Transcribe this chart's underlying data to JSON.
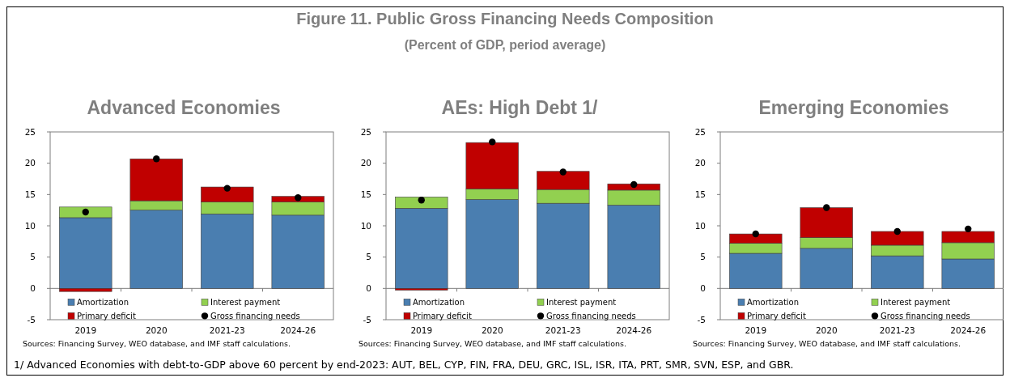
{
  "chart_data": [
    {
      "type": "other",
      "title": "Figure 11. Public Gross Financing Needs Composition",
      "subtitle": "(Percent of GDP, period average)",
      "annotations": [
        "1/ Advanced Economies with debt-to-GDP above 60 percent by end-2023: AUT, BEL, CYP, FIN, FRA, DEU, GRC, ISL, ISR, ITA, PRT, SMR, SVN, ESP, and GBR."
      ]
    },
    {
      "type": "bar",
      "stacked": true,
      "title": "Advanced Economies",
      "categories": [
        "2019",
        "2020",
        "2021-23",
        "2024-26"
      ],
      "ylim": [
        -5,
        25
      ],
      "yticks": [
        -5,
        0,
        5,
        10,
        15,
        20,
        25
      ],
      "legend": "bottom",
      "marker": "circle",
      "annotations": [
        "Sources: Financing Survey, WEO database, and IMF staff calculations."
      ],
      "series": [
        {
          "name": "Amortization",
          "color": "#4a7eb0",
          "values": [
            11.3,
            12.5,
            11.9,
            11.7
          ]
        },
        {
          "name": "Interest payment",
          "color": "#92d050",
          "values": [
            1.7,
            1.5,
            1.9,
            2.1
          ]
        },
        {
          "name": "Primary deficit",
          "color": "#c00000",
          "values": [
            -0.5,
            6.7,
            2.4,
            0.9
          ]
        },
        {
          "name": "Gross financing needs",
          "type": "scatter",
          "color": "#000000",
          "values": [
            12.2,
            20.7,
            16.0,
            14.5
          ]
        }
      ]
    },
    {
      "type": "bar",
      "stacked": true,
      "title": "AEs: High Debt 1/",
      "categories": [
        "2019",
        "2020",
        "2021-23",
        "2024-26"
      ],
      "ylim": [
        -5,
        25
      ],
      "yticks": [
        -5,
        0,
        5,
        10,
        15,
        20,
        25
      ],
      "legend": "bottom",
      "marker": "circle",
      "annotations": [
        "Sources: Financing Survey, WEO database, and IMF staff calculations."
      ],
      "series": [
        {
          "name": "Amortization",
          "color": "#4a7eb0",
          "values": [
            12.8,
            14.2,
            13.6,
            13.3
          ]
        },
        {
          "name": "Interest payment",
          "color": "#92d050",
          "values": [
            1.8,
            1.7,
            2.2,
            2.4
          ]
        },
        {
          "name": "Primary deficit",
          "color": "#c00000",
          "values": [
            -0.3,
            7.4,
            2.9,
            1.0
          ]
        },
        {
          "name": "Gross financing needs",
          "type": "scatter",
          "color": "#000000",
          "values": [
            14.1,
            23.4,
            18.6,
            16.6
          ]
        }
      ]
    },
    {
      "type": "bar",
      "stacked": true,
      "title": "Emerging Economies",
      "categories": [
        "2019",
        "2020",
        "2021-23",
        "2024-26"
      ],
      "ylim": [
        -5,
        25
      ],
      "yticks": [
        -5,
        0,
        5,
        10,
        15,
        20,
        25
      ],
      "legend": "bottom",
      "marker": "circle",
      "annotations": [
        "Sources: Financing Survey, WEO database, and IMF staff calculations."
      ],
      "series": [
        {
          "name": "Amortization",
          "color": "#4a7eb0",
          "values": [
            5.6,
            6.4,
            5.2,
            4.7
          ]
        },
        {
          "name": "Interest payment",
          "color": "#92d050",
          "values": [
            1.6,
            1.7,
            1.7,
            2.6
          ]
        },
        {
          "name": "Primary deficit",
          "color": "#c00000",
          "values": [
            1.5,
            4.8,
            2.2,
            1.8
          ]
        },
        {
          "name": "Gross financing needs",
          "type": "scatter",
          "color": "#000000",
          "values": [
            8.7,
            12.9,
            9.1,
            9.5
          ]
        }
      ]
    }
  ]
}
